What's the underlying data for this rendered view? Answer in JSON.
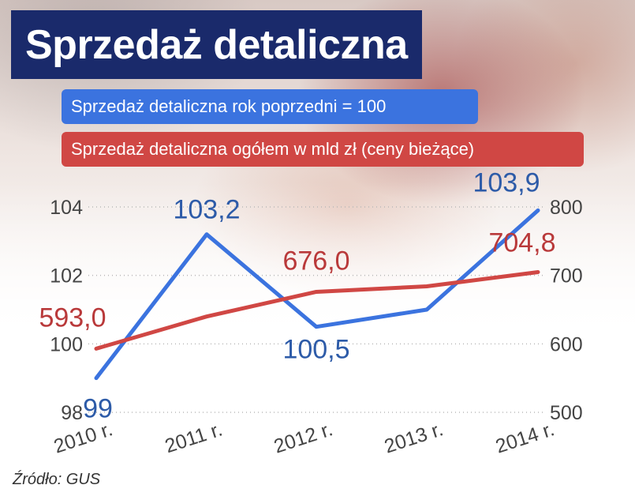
{
  "title": "Sprzedaż detaliczna",
  "legend": {
    "blue": "Sprzedaż detaliczna rok poprzedni = 100",
    "red": "Sprzedaż detaliczna ogółem w mld zł (ceny bieżące)"
  },
  "source": "Źródło: GUS",
  "colors": {
    "blue": "#3b73df",
    "red": "#d04744",
    "title_bg": "#1a2a6b",
    "blue_label": "#2d5ba8",
    "red_label": "#b9393a"
  },
  "chart_data": {
    "type": "line",
    "categories": [
      "2010 r.",
      "2011 r.",
      "2012 r.",
      "2013 r.",
      "2014 r."
    ],
    "left_axis": {
      "ylim": [
        98,
        104
      ],
      "ticks": [
        "98",
        "100",
        "102",
        "104"
      ]
    },
    "right_axis": {
      "ylim": [
        500,
        800
      ],
      "ticks": [
        "500",
        "600",
        "700",
        "800"
      ]
    },
    "series": [
      {
        "name": "Sprzedaż detaliczna rok poprzedni = 100",
        "axis": "left",
        "color": "#3b73df",
        "values": [
          99.0,
          103.2,
          100.5,
          101.0,
          103.9
        ],
        "labels": [
          "99",
          "103,2",
          "100,5",
          null,
          "103,9"
        ]
      },
      {
        "name": "Sprzedaż detaliczna ogółem w mld zł (ceny bieżące)",
        "axis": "right",
        "color": "#d04744",
        "values": [
          593.0,
          640.0,
          676.0,
          684.0,
          704.8
        ],
        "labels": [
          "593,0",
          null,
          "676,0",
          null,
          "704,8"
        ]
      }
    ],
    "grid": "horizontal dotted"
  }
}
